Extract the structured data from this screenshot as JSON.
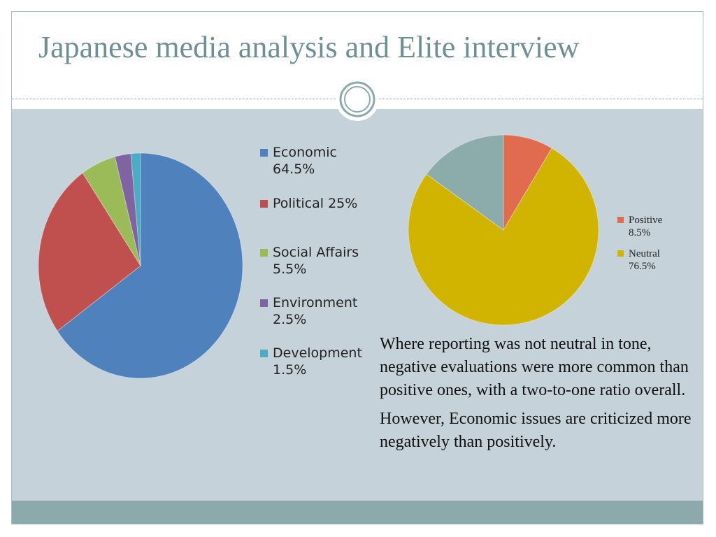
{
  "slide": {
    "title": "Japanese media analysis and Elite interview",
    "paragraphs": [
      "Where reporting was not neutral in tone, negative evaluations were more common than positive ones, with a two-to-one ratio overall.",
      "However, Economic issues are criticized  more negatively than positively."
    ],
    "colors": {
      "title": "#6f9093",
      "panel": "#c6d2d9",
      "footer": "#8caaac"
    }
  },
  "chart_data": [
    {
      "type": "pie",
      "title": "",
      "legend_position": "right",
      "slices": [
        {
          "label": "Economic",
          "value_text": "64.5%",
          "value": 64.5,
          "color": "#4f81bd"
        },
        {
          "label": "Political 25%",
          "value_text": "",
          "value": 25,
          "color": "#c0504d"
        },
        {
          "label": "Social Affairs",
          "value_text": "5.5%",
          "value": 5.5,
          "color": "#9bbb59"
        },
        {
          "label": "Environment",
          "value_text": "2.5%",
          "value": 2.5,
          "color": "#8064a2"
        },
        {
          "label": "Development",
          "value_text": "1.5%",
          "value": 1.5,
          "color": "#4bacc6"
        }
      ]
    },
    {
      "type": "pie",
      "title": "",
      "legend_position": "right",
      "slices": [
        {
          "label": "Positive",
          "value_text": "8.5%",
          "value": 8.5,
          "color": "#e06b4e",
          "in_legend": true
        },
        {
          "label": "Neutral",
          "value_text": "76.5%",
          "value": 76.5,
          "color": "#d1b400",
          "in_legend": true
        },
        {
          "label": "",
          "value_text": "",
          "value": 15,
          "color": "#8cacac",
          "in_legend": false
        }
      ]
    }
  ]
}
